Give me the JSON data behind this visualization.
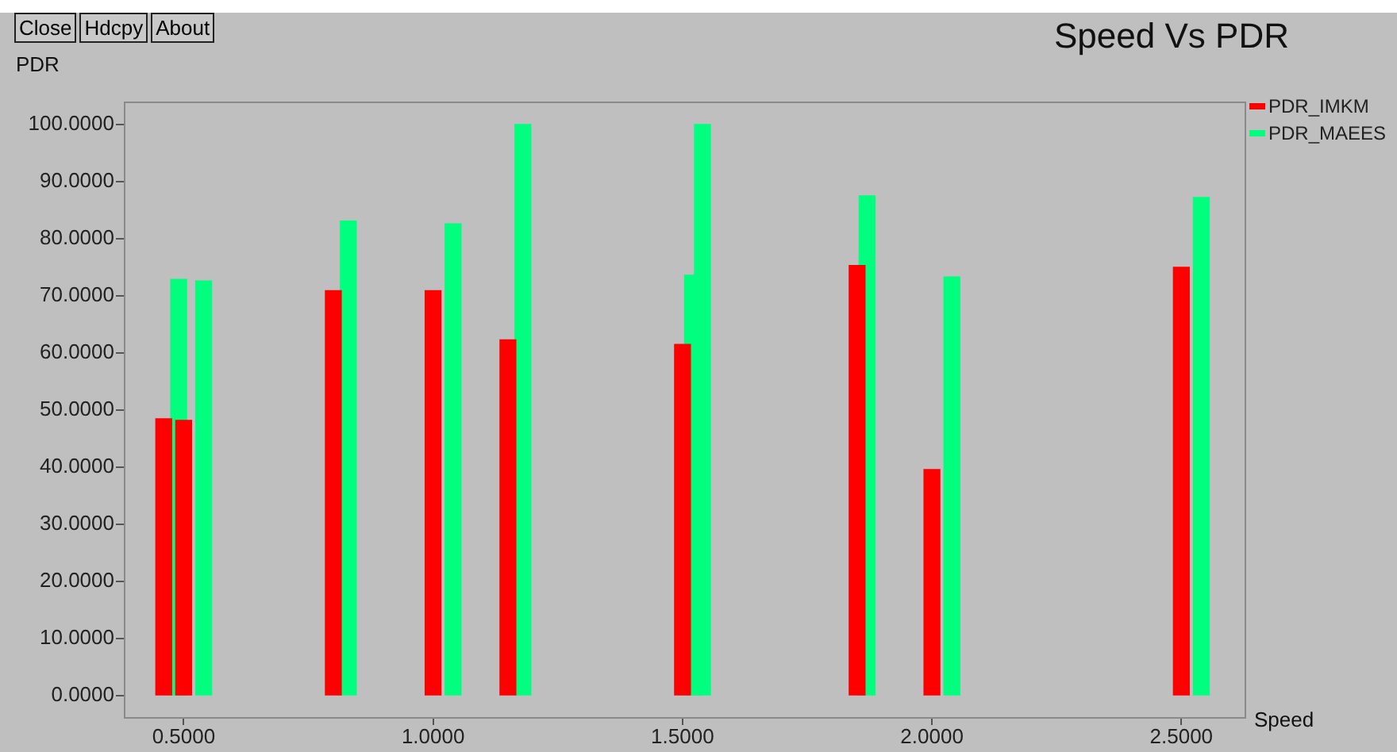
{
  "chart_data": {
    "type": "bar",
    "title": "Speed Vs PDR",
    "xlabel": "Speed",
    "ylabel": "PDR",
    "annotations": [
      "Close",
      "Hdcpy",
      "About"
    ],
    "xlim": [
      0.38,
      2.63
    ],
    "xticks": [
      {
        "value": 0.5,
        "label": "0.5000"
      },
      {
        "value": 1.0,
        "label": "1.0000"
      },
      {
        "value": 1.5,
        "label": "1.5000"
      },
      {
        "value": 2.0,
        "label": "2.0000"
      },
      {
        "value": 2.5,
        "label": "2.5000"
      }
    ],
    "ylim": [
      -4,
      104
    ],
    "yticks": [
      {
        "value": 0,
        "label": "0.0000"
      },
      {
        "value": 10,
        "label": "10.0000"
      },
      {
        "value": 20,
        "label": "20.0000"
      },
      {
        "value": 30,
        "label": "30.0000"
      },
      {
        "value": 40,
        "label": "40.0000"
      },
      {
        "value": 50,
        "label": "50.0000"
      },
      {
        "value": 60,
        "label": "60.0000"
      },
      {
        "value": 70,
        "label": "70.0000"
      },
      {
        "value": 80,
        "label": "80.0000"
      },
      {
        "value": 90,
        "label": "90.0000"
      },
      {
        "value": 100,
        "label": "100.0000"
      }
    ],
    "grid": false,
    "legend": "top right",
    "series": [
      {
        "name": "PDR_IMKM",
        "color": "#ff0000",
        "x": [
          0.46,
          0.5,
          0.8,
          1.0,
          1.15,
          1.5,
          1.85,
          2.0,
          2.5
        ],
        "values": [
          48.5,
          48.2,
          70.9,
          70.9,
          62.3,
          61.5,
          75.3,
          39.6,
          75.0
        ]
      },
      {
        "name": "PDR_MAEES",
        "color": "#00ff7f",
        "x": [
          0.49,
          0.54,
          0.83,
          1.04,
          1.18,
          1.52,
          1.54,
          1.87,
          2.04,
          2.54
        ],
        "values": [
          72.9,
          72.6,
          83.1,
          82.6,
          100,
          73.6,
          100,
          87.5,
          73.3,
          87.2
        ]
      }
    ]
  }
}
